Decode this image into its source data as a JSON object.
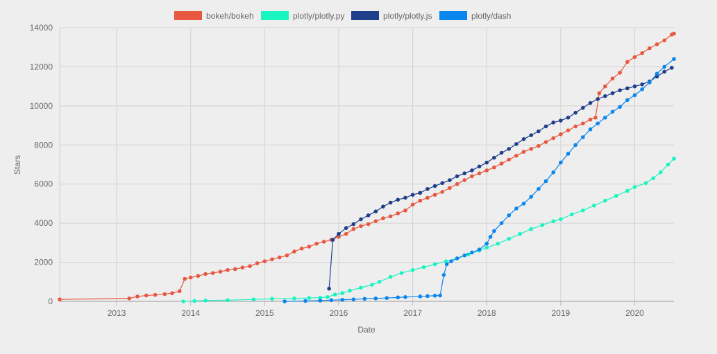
{
  "chart_data": {
    "type": "line",
    "title": "",
    "xlabel": "Date",
    "ylabel": "Stars",
    "xlim": [
      2012.23,
      2020.53
    ],
    "ylim": [
      0,
      14000
    ],
    "x_ticks": [
      "2013",
      "2014",
      "2015",
      "2016",
      "2017",
      "2018",
      "2019",
      "2020"
    ],
    "x_tick_values": [
      2013,
      2014,
      2015,
      2016,
      2017,
      2018,
      2019,
      2020
    ],
    "y_ticks": [
      "0",
      "2000",
      "4000",
      "6000",
      "8000",
      "10000",
      "12000",
      "14000"
    ],
    "y_tick_values": [
      0,
      2000,
      4000,
      6000,
      8000,
      10000,
      12000,
      14000
    ],
    "grid": true,
    "legend_position": "top-center",
    "series": [
      {
        "name": "bokeh/bokeh",
        "color": "#e8573f",
        "points": [
          [
            2012.23,
            100
          ],
          [
            2013.17,
            150
          ],
          [
            2013.28,
            250
          ],
          [
            2013.4,
            300
          ],
          [
            2013.52,
            330
          ],
          [
            2013.65,
            370
          ],
          [
            2013.75,
            420
          ],
          [
            2013.85,
            520
          ],
          [
            2013.92,
            1150
          ],
          [
            2014.0,
            1220
          ],
          [
            2014.1,
            1300
          ],
          [
            2014.2,
            1400
          ],
          [
            2014.3,
            1450
          ],
          [
            2014.4,
            1520
          ],
          [
            2014.5,
            1600
          ],
          [
            2014.6,
            1650
          ],
          [
            2014.7,
            1730
          ],
          [
            2014.8,
            1800
          ],
          [
            2014.9,
            1950
          ],
          [
            2015.0,
            2050
          ],
          [
            2015.1,
            2150
          ],
          [
            2015.2,
            2250
          ],
          [
            2015.3,
            2350
          ],
          [
            2015.4,
            2550
          ],
          [
            2015.5,
            2700
          ],
          [
            2015.6,
            2800
          ],
          [
            2015.7,
            2950
          ],
          [
            2015.8,
            3050
          ],
          [
            2015.9,
            3150
          ],
          [
            2016.0,
            3300
          ],
          [
            2016.1,
            3450
          ],
          [
            2016.2,
            3700
          ],
          [
            2016.3,
            3850
          ],
          [
            2016.4,
            3950
          ],
          [
            2016.5,
            4100
          ],
          [
            2016.6,
            4250
          ],
          [
            2016.7,
            4350
          ],
          [
            2016.8,
            4500
          ],
          [
            2016.9,
            4650
          ],
          [
            2017.0,
            4950
          ],
          [
            2017.1,
            5150
          ],
          [
            2017.2,
            5300
          ],
          [
            2017.3,
            5450
          ],
          [
            2017.4,
            5600
          ],
          [
            2017.5,
            5800
          ],
          [
            2017.6,
            6000
          ],
          [
            2017.7,
            6200
          ],
          [
            2017.8,
            6400
          ],
          [
            2017.9,
            6550
          ],
          [
            2018.0,
            6700
          ],
          [
            2018.1,
            6850
          ],
          [
            2018.2,
            7050
          ],
          [
            2018.3,
            7250
          ],
          [
            2018.4,
            7450
          ],
          [
            2018.5,
            7650
          ],
          [
            2018.6,
            7800
          ],
          [
            2018.7,
            7950
          ],
          [
            2018.8,
            8150
          ],
          [
            2018.9,
            8350
          ],
          [
            2019.0,
            8550
          ],
          [
            2019.1,
            8750
          ],
          [
            2019.2,
            8950
          ],
          [
            2019.3,
            9100
          ],
          [
            2019.4,
            9300
          ],
          [
            2019.47,
            9400
          ],
          [
            2019.52,
            10650
          ],
          [
            2019.6,
            11000
          ],
          [
            2019.7,
            11400
          ],
          [
            2019.8,
            11700
          ],
          [
            2019.9,
            12250
          ],
          [
            2020.0,
            12500
          ],
          [
            2020.1,
            12700
          ],
          [
            2020.2,
            12950
          ],
          [
            2020.3,
            13150
          ],
          [
            2020.4,
            13350
          ],
          [
            2020.5,
            13650
          ],
          [
            2020.53,
            13700
          ]
        ]
      },
      {
        "name": "plotly/plotly.py",
        "color": "#19f5c0",
        "points": [
          [
            2013.9,
            0
          ],
          [
            2014.05,
            20
          ],
          [
            2014.2,
            40
          ],
          [
            2014.5,
            60
          ],
          [
            2014.85,
            100
          ],
          [
            2015.1,
            130
          ],
          [
            2015.4,
            150
          ],
          [
            2015.6,
            170
          ],
          [
            2015.75,
            190
          ],
          [
            2015.85,
            220
          ],
          [
            2015.95,
            350
          ],
          [
            2016.05,
            420
          ],
          [
            2016.15,
            550
          ],
          [
            2016.3,
            700
          ],
          [
            2016.45,
            850
          ],
          [
            2016.55,
            1000
          ],
          [
            2016.7,
            1250
          ],
          [
            2016.85,
            1450
          ],
          [
            2017.0,
            1600
          ],
          [
            2017.15,
            1750
          ],
          [
            2017.3,
            1900
          ],
          [
            2017.45,
            2050
          ],
          [
            2017.6,
            2200
          ],
          [
            2017.75,
            2400
          ],
          [
            2017.9,
            2600
          ],
          [
            2018.0,
            2750
          ],
          [
            2018.15,
            2950
          ],
          [
            2018.3,
            3200
          ],
          [
            2018.45,
            3450
          ],
          [
            2018.6,
            3700
          ],
          [
            2018.75,
            3900
          ],
          [
            2018.9,
            4100
          ],
          [
            2019.0,
            4200
          ],
          [
            2019.15,
            4450
          ],
          [
            2019.3,
            4650
          ],
          [
            2019.45,
            4900
          ],
          [
            2019.6,
            5150
          ],
          [
            2019.75,
            5400
          ],
          [
            2019.9,
            5650
          ],
          [
            2020.0,
            5850
          ],
          [
            2020.15,
            6050
          ],
          [
            2020.25,
            6300
          ],
          [
            2020.35,
            6600
          ],
          [
            2020.45,
            7000
          ],
          [
            2020.53,
            7300
          ]
        ]
      },
      {
        "name": "plotly/plotly.js",
        "color": "#1f3f8a",
        "points": [
          [
            2015.87,
            650
          ],
          [
            2015.92,
            3150
          ],
          [
            2016.0,
            3450
          ],
          [
            2016.1,
            3750
          ],
          [
            2016.2,
            3950
          ],
          [
            2016.3,
            4200
          ],
          [
            2016.4,
            4400
          ],
          [
            2016.5,
            4600
          ],
          [
            2016.6,
            4850
          ],
          [
            2016.7,
            5050
          ],
          [
            2016.8,
            5200
          ],
          [
            2016.9,
            5300
          ],
          [
            2017.0,
            5450
          ],
          [
            2017.1,
            5550
          ],
          [
            2017.2,
            5750
          ],
          [
            2017.3,
            5900
          ],
          [
            2017.4,
            6050
          ],
          [
            2017.5,
            6200
          ],
          [
            2017.6,
            6400
          ],
          [
            2017.7,
            6550
          ],
          [
            2017.8,
            6700
          ],
          [
            2017.9,
            6900
          ],
          [
            2018.0,
            7100
          ],
          [
            2018.1,
            7350
          ],
          [
            2018.2,
            7600
          ],
          [
            2018.3,
            7800
          ],
          [
            2018.4,
            8050
          ],
          [
            2018.5,
            8300
          ],
          [
            2018.6,
            8500
          ],
          [
            2018.7,
            8700
          ],
          [
            2018.8,
            8950
          ],
          [
            2018.9,
            9150
          ],
          [
            2019.0,
            9250
          ],
          [
            2019.1,
            9400
          ],
          [
            2019.2,
            9650
          ],
          [
            2019.3,
            9900
          ],
          [
            2019.4,
            10150
          ],
          [
            2019.5,
            10350
          ],
          [
            2019.6,
            10500
          ],
          [
            2019.7,
            10650
          ],
          [
            2019.8,
            10800
          ],
          [
            2019.9,
            10900
          ],
          [
            2020.0,
            11000
          ],
          [
            2020.1,
            11100
          ],
          [
            2020.2,
            11250
          ],
          [
            2020.3,
            11500
          ],
          [
            2020.4,
            11750
          ],
          [
            2020.5,
            11950
          ]
        ]
      },
      {
        "name": "plotly/dash",
        "color": "#0a86ee",
        "points": [
          [
            2015.27,
            0
          ],
          [
            2015.55,
            20
          ],
          [
            2015.75,
            40
          ],
          [
            2015.9,
            60
          ],
          [
            2016.05,
            80
          ],
          [
            2016.2,
            100
          ],
          [
            2016.35,
            130
          ],
          [
            2016.5,
            150
          ],
          [
            2016.65,
            170
          ],
          [
            2016.8,
            200
          ],
          [
            2016.9,
            220
          ],
          [
            2017.1,
            250
          ],
          [
            2017.2,
            270
          ],
          [
            2017.3,
            290
          ],
          [
            2017.37,
            300
          ],
          [
            2017.42,
            1350
          ],
          [
            2017.46,
            1900
          ],
          [
            2017.52,
            2050
          ],
          [
            2017.6,
            2200
          ],
          [
            2017.7,
            2350
          ],
          [
            2017.8,
            2500
          ],
          [
            2017.9,
            2650
          ],
          [
            2018.0,
            2950
          ],
          [
            2018.05,
            3300
          ],
          [
            2018.1,
            3600
          ],
          [
            2018.2,
            4000
          ],
          [
            2018.3,
            4400
          ],
          [
            2018.4,
            4750
          ],
          [
            2018.5,
            5000
          ],
          [
            2018.6,
            5350
          ],
          [
            2018.7,
            5750
          ],
          [
            2018.8,
            6150
          ],
          [
            2018.9,
            6600
          ],
          [
            2019.0,
            7100
          ],
          [
            2019.1,
            7550
          ],
          [
            2019.2,
            8000
          ],
          [
            2019.3,
            8400
          ],
          [
            2019.4,
            8800
          ],
          [
            2019.5,
            9100
          ],
          [
            2019.6,
            9400
          ],
          [
            2019.7,
            9700
          ],
          [
            2019.8,
            9950
          ],
          [
            2019.9,
            10300
          ],
          [
            2020.0,
            10550
          ],
          [
            2020.1,
            10850
          ],
          [
            2020.2,
            11200
          ],
          [
            2020.3,
            11650
          ],
          [
            2020.4,
            12000
          ],
          [
            2020.53,
            12400
          ]
        ]
      }
    ]
  }
}
